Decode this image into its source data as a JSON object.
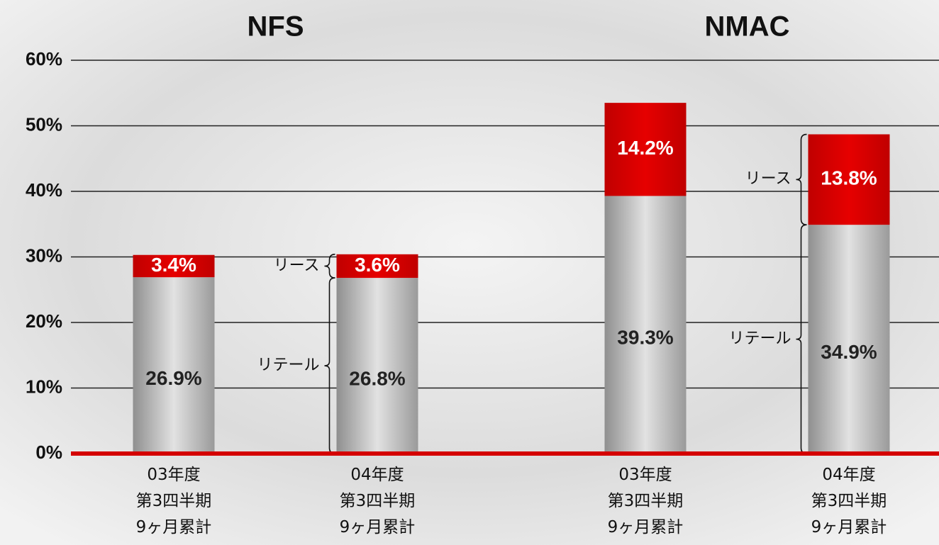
{
  "chart_data": {
    "type": "stacked-bar",
    "groups": [
      "NFS",
      "NMAC"
    ],
    "categories": [
      "03年度\n第3四半期\n 9ヶ月累計",
      "04年度\n第3四半期\n 9ヶ月累計",
      "03年度\n第3四半期\n 9ヶ月累計",
      "04年度\n第3四半期\n 9ヶ月累計"
    ],
    "series": [
      {
        "name": "リテール",
        "color": "#b5b5b5",
        "values": [
          26.9,
          26.8,
          39.3,
          34.9
        ],
        "value_labels": [
          "26.9%",
          "26.8%",
          "39.3%",
          "34.9%"
        ]
      },
      {
        "name": "リース",
        "color": "#d40000",
        "values": [
          3.4,
          3.6,
          14.2,
          13.8
        ],
        "value_labels": [
          "3.4%",
          "3.6%",
          "14.2%",
          "13.8%"
        ]
      }
    ],
    "ylim": [
      0,
      60
    ],
    "yticks": [
      {
        "value": 0,
        "label": "0%"
      },
      {
        "value": 10,
        "label": "10%"
      },
      {
        "value": 20,
        "label": "20%"
      },
      {
        "value": 30,
        "label": "30%"
      },
      {
        "value": 40,
        "label": "40%"
      },
      {
        "value": 50,
        "label": "50%"
      },
      {
        "value": 60,
        "label": "60%"
      }
    ],
    "grid": true
  }
}
